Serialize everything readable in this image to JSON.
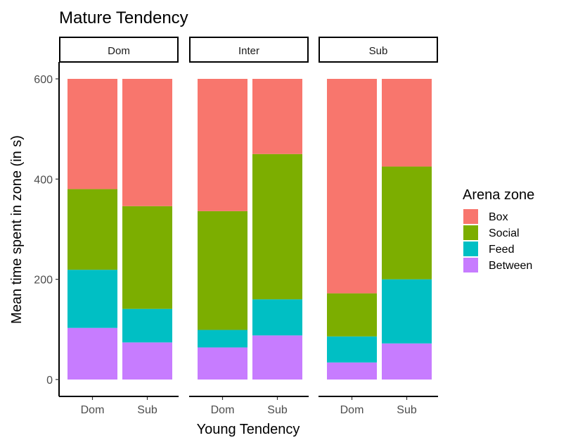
{
  "chart_data": {
    "type": "bar",
    "stacked": true,
    "title": "Mature Tendency",
    "xlabel": "Young Tendency",
    "ylabel": "Mean time spent in zone (in s)",
    "ylim": [
      0,
      600
    ],
    "yticks": [
      0,
      200,
      400,
      600
    ],
    "panels": [
      "Dom",
      "Inter",
      "Sub"
    ],
    "categories": [
      "Dom",
      "Sub"
    ],
    "legend_title": "Arena zone",
    "legend_position": "right",
    "grid": false,
    "stack_order_bottom_to_top": [
      "Between",
      "Feed",
      "Social",
      "Box"
    ],
    "series": [
      {
        "name": "Box",
        "color": "#F8766D",
        "values": [
          [
            220,
            254
          ],
          [
            264,
            150
          ],
          [
            428,
            175
          ]
        ]
      },
      {
        "name": "Social",
        "color": "#7CAE00",
        "values": [
          [
            161,
            205
          ],
          [
            237,
            290
          ],
          [
            86,
            225
          ]
        ]
      },
      {
        "name": "Feed",
        "color": "#00BFC4",
        "values": [
          [
            116,
            67
          ],
          [
            35,
            72
          ],
          [
            52,
            128
          ]
        ]
      },
      {
        "name": "Between",
        "color": "#C77CFF",
        "values": [
          [
            103,
            74
          ],
          [
            64,
            88
          ],
          [
            34,
            72
          ]
        ]
      }
    ]
  }
}
